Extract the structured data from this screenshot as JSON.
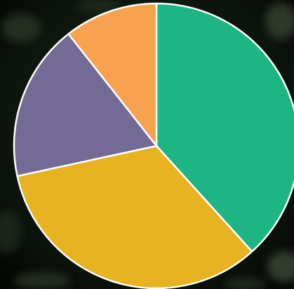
{
  "chart_data": {
    "type": "pie",
    "title": "",
    "slices": [
      {
        "value": 38.3,
        "color": "#1db584"
      },
      {
        "value": 33.3,
        "color": "#e8b321"
      },
      {
        "value": 17.8,
        "color": "#736a95"
      },
      {
        "value": 10.6,
        "color": "#f8a250"
      }
    ],
    "start_angle_deg": 0,
    "direction": "clockwise",
    "legend": "none"
  },
  "background": {
    "description_colors": [
      "#0c120c",
      "#1e2b1c",
      "#3a4a34"
    ]
  }
}
